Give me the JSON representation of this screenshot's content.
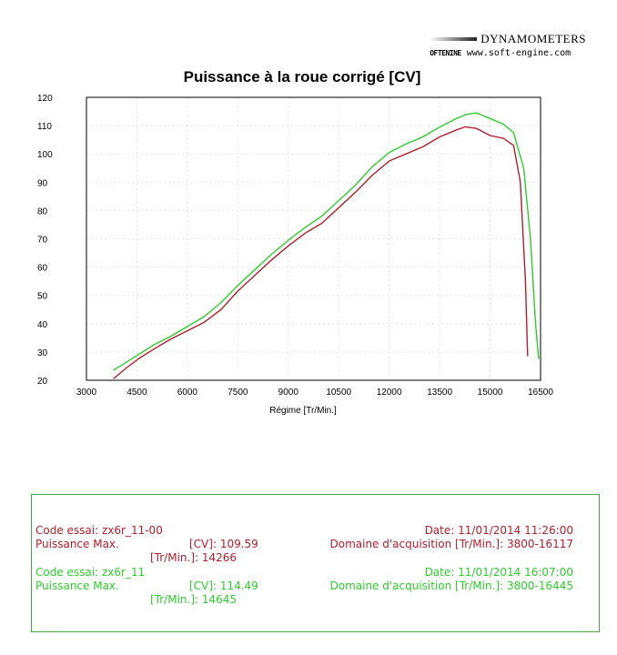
{
  "brand": {
    "name": "DYNAMOMETERS",
    "logo": "OFTENINE",
    "url": "www.soft-engine.com"
  },
  "chart_data": {
    "type": "line",
    "title": "Puissance à la roue corrigé [CV]",
    "xlabel": "Régime [Tr/Min.]",
    "ylabel": "",
    "xlim": [
      3000,
      16500
    ],
    "ylim": [
      20,
      120
    ],
    "x_ticks": [
      3000,
      4500,
      6000,
      7500,
      9000,
      10500,
      12000,
      13500,
      15000,
      16500
    ],
    "y_ticks": [
      20,
      30,
      40,
      50,
      60,
      70,
      80,
      90,
      100,
      110,
      120
    ],
    "colors": {
      "series1": "#b3202a",
      "series2": "#2ecc2e"
    },
    "series": [
      {
        "x": [
          3800,
          4200,
          4600,
          5000,
          5500,
          6000,
          6500,
          7000,
          7500,
          8000,
          8500,
          9000,
          9500,
          10000,
          10500,
          11000,
          11500,
          12000,
          12500,
          13000,
          13500,
          14000,
          14266,
          14600,
          15000,
          15400,
          15700,
          15900,
          16050,
          16117
        ],
        "y": [
          20.5,
          24.5,
          28.0,
          31.0,
          34.5,
          37.5,
          40.5,
          45.0,
          51.5,
          57.0,
          62.5,
          67.5,
          72.0,
          75.5,
          81.0,
          86.5,
          92.5,
          97.5,
          100.0,
          102.5,
          106.0,
          108.5,
          109.59,
          109.0,
          106.5,
          105.5,
          103.0,
          90.0,
          55.0,
          28.5
        ]
      },
      {
        "x": [
          3800,
          4200,
          4600,
          5000,
          5500,
          6000,
          6500,
          7000,
          7500,
          8000,
          8500,
          9000,
          9500,
          10000,
          10500,
          11000,
          11500,
          12000,
          12500,
          13000,
          13500,
          14000,
          14300,
          14600,
          15000,
          15400,
          15700,
          16000,
          16200,
          16350,
          16445
        ],
        "y": [
          23.5,
          26.5,
          29.5,
          32.5,
          35.5,
          39.0,
          42.5,
          47.5,
          53.5,
          59.0,
          64.5,
          69.5,
          74.0,
          78.0,
          83.5,
          89.0,
          95.5,
          100.5,
          103.5,
          106.0,
          109.5,
          112.5,
          114.0,
          114.49,
          112.5,
          110.5,
          107.5,
          95.0,
          70.0,
          40.0,
          27.5
        ]
      }
    ]
  },
  "legend": {
    "run1": {
      "code_label": "Code essai:",
      "code_value": "zx6r_11-00",
      "date_label": "Date:",
      "date_value": "11/01/2014 11:26:00",
      "power_label": "Puissance Max.",
      "power_unit": "[CV]:",
      "power_value": "109.59",
      "domain_label": "Domaine d'acquisition [Tr/Min.]:",
      "domain_value": "3800-16117",
      "rpm_unit": "[Tr/Min.]:",
      "rpm_value": "14266"
    },
    "run2": {
      "code_label": "Code essai:",
      "code_value": "zx6r_11",
      "date_label": "Date:",
      "date_value": "11/01/2014 16:07:00",
      "power_label": "Puissance Max.",
      "power_unit": "[CV]:",
      "power_value": "114.49",
      "domain_label": "Domaine d'acquisition [Tr/Min.]:",
      "domain_value": "3800-16445",
      "rpm_unit": "[Tr/Min.]:",
      "rpm_value": "14645"
    }
  }
}
